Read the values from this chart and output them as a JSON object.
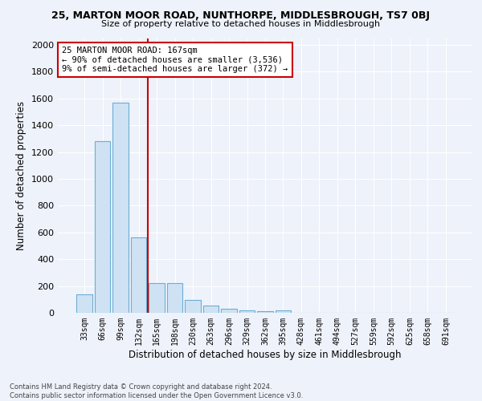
{
  "title": "25, MARTON MOOR ROAD, NUNTHORPE, MIDDLESBROUGH, TS7 0BJ",
  "subtitle": "Size of property relative to detached houses in Middlesbrough",
  "xlabel": "Distribution of detached houses by size in Middlesbrough",
  "ylabel": "Number of detached properties",
  "bar_labels": [
    "33sqm",
    "66sqm",
    "99sqm",
    "132sqm",
    "165sqm",
    "198sqm",
    "230sqm",
    "263sqm",
    "296sqm",
    "329sqm",
    "362sqm",
    "395sqm",
    "428sqm",
    "461sqm",
    "494sqm",
    "527sqm",
    "559sqm",
    "592sqm",
    "625sqm",
    "658sqm",
    "691sqm"
  ],
  "bar_values": [
    140,
    1280,
    1570,
    560,
    220,
    220,
    95,
    55,
    30,
    15,
    10,
    15,
    0,
    0,
    0,
    0,
    0,
    0,
    0,
    0,
    0
  ],
  "bar_color": "#cfe2f3",
  "bar_edge_color": "#6aaed6",
  "annotation_text": "25 MARTON MOOR ROAD: 167sqm\n← 90% of detached houses are smaller (3,536)\n9% of semi-detached houses are larger (372) →",
  "annotation_box_color": "#ffffff",
  "annotation_box_edge_color": "#cc0000",
  "vline_color": "#cc0000",
  "vline_x_index": 3.5,
  "ylim": [
    0,
    2050
  ],
  "yticks": [
    0,
    200,
    400,
    600,
    800,
    1000,
    1200,
    1400,
    1600,
    1800,
    2000
  ],
  "background_color": "#eef2fa",
  "grid_color": "#ffffff",
  "footer_line1": "Contains HM Land Registry data © Crown copyright and database right 2024.",
  "footer_line2": "Contains public sector information licensed under the Open Government Licence v3.0."
}
